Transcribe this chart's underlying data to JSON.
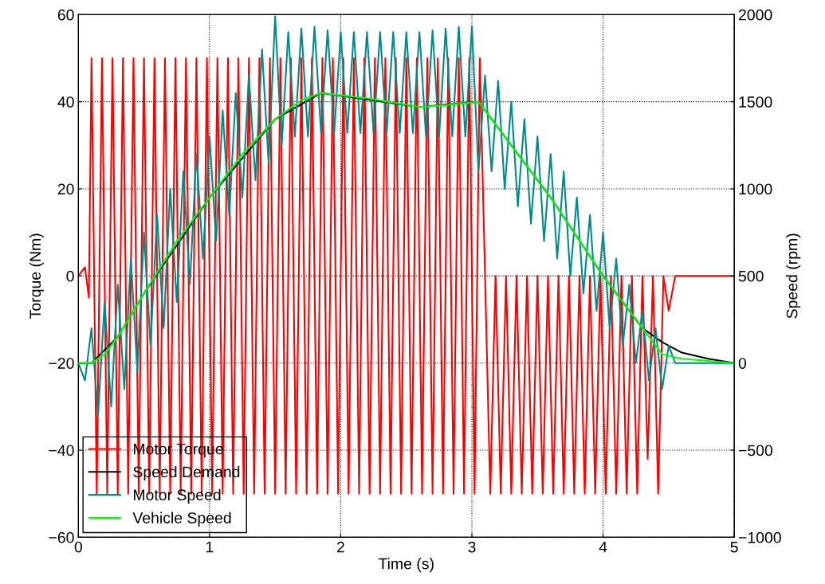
{
  "chart_data": {
    "type": "line",
    "xlabel": "Time (s)",
    "ylabel": "Torque (Nm)",
    "y2label": "Speed (rpm)",
    "xlim": [
      0,
      5
    ],
    "xticks": [
      0,
      1,
      2,
      3,
      4,
      5
    ],
    "ylim": [
      -60,
      60
    ],
    "yticks": [
      -60,
      -40,
      -20,
      0,
      20,
      40,
      60
    ],
    "y2lim": [
      -1000,
      2000
    ],
    "y2ticks": [
      -1000,
      -500,
      0,
      500,
      1000,
      1500,
      2000
    ],
    "grid": true,
    "legend": "bottom left",
    "line_style": "solid",
    "marker": "none",
    "series": [
      {
        "name": "Motor Torque",
        "color": "#ff0000",
        "x": [
          0,
          0.05,
          0.08,
          0.1,
          0.14,
          0.18,
          0.22,
          0.26,
          0.3,
          0.34,
          0.38,
          0.42,
          0.46,
          0.5,
          0.54,
          0.58,
          0.62,
          0.66,
          0.7,
          0.74,
          0.78,
          0.82,
          0.86,
          0.9,
          0.94,
          0.98,
          1.02,
          1.06,
          1.1,
          1.14,
          1.18,
          1.22,
          1.26,
          1.3,
          1.34,
          1.38,
          1.42,
          1.46,
          1.5,
          1.54,
          1.58,
          1.62,
          1.66,
          1.7,
          1.74,
          1.78,
          1.82,
          1.86,
          1.9,
          1.94,
          1.98,
          2.02,
          2.06,
          2.1,
          2.14,
          2.18,
          2.22,
          2.26,
          2.3,
          2.34,
          2.38,
          2.42,
          2.46,
          2.5,
          2.54,
          2.58,
          2.62,
          2.66,
          2.7,
          2.74,
          2.78,
          2.82,
          2.86,
          2.9,
          2.94,
          2.98,
          3.02,
          3.06,
          3.1,
          3.14,
          3.18,
          3.22,
          3.26,
          3.3,
          3.34,
          3.38,
          3.42,
          3.46,
          3.5,
          3.54,
          3.58,
          3.62,
          3.66,
          3.7,
          3.74,
          3.78,
          3.82,
          3.86,
          3.9,
          3.94,
          3.98,
          4.02,
          4.06,
          4.1,
          4.14,
          4.18,
          4.22,
          4.26,
          4.3,
          4.34,
          4.38,
          4.42,
          4.46,
          4.5,
          4.55,
          5.0
        ],
        "values": [
          0,
          2,
          -5,
          50,
          -50,
          50,
          -50,
          50,
          -50,
          50,
          -50,
          50,
          -50,
          50,
          -50,
          50,
          -50,
          50,
          -50,
          50,
          -50,
          50,
          -50,
          50,
          -50,
          50,
          -50,
          50,
          -50,
          50,
          -50,
          50,
          -50,
          50,
          -50,
          50,
          -50,
          50,
          -50,
          50,
          -50,
          50,
          -50,
          50,
          -50,
          50,
          -50,
          50,
          -50,
          50,
          -50,
          50,
          -50,
          50,
          -50,
          50,
          -50,
          50,
          -50,
          50,
          -50,
          50,
          -50,
          50,
          -50,
          50,
          -50,
          50,
          -50,
          50,
          -50,
          50,
          -50,
          50,
          -50,
          50,
          -50,
          50,
          0,
          -50,
          0,
          -50,
          0,
          -50,
          0,
          -50,
          0,
          -50,
          0,
          -50,
          0,
          -50,
          0,
          -50,
          0,
          -50,
          0,
          -50,
          0,
          -50,
          0,
          -50,
          0,
          -50,
          0,
          -50,
          0,
          -50,
          0,
          -42,
          0,
          -50,
          0,
          -8,
          0,
          0
        ]
      },
      {
        "name": "Speed Demand",
        "color": "#000000",
        "axis": "y2",
        "x": [
          0,
          0.1,
          0.3,
          0.5,
          1.0,
          1.5,
          1.85,
          2.6,
          3.05,
          3.3,
          3.6,
          4.0,
          4.3,
          4.45,
          4.6,
          4.8,
          5.0
        ],
        "values": [
          0,
          0,
          150,
          400,
          950,
          1400,
          1550,
          1470,
          1500,
          1250,
          950,
          500,
          200,
          120,
          60,
          25,
          0
        ]
      },
      {
        "name": "Motor Speed",
        "color": "#008b8b",
        "axis": "y2",
        "x": [
          0,
          0.05,
          0.1,
          0.15,
          0.2,
          0.25,
          0.3,
          0.35,
          0.4,
          0.45,
          0.5,
          0.55,
          0.6,
          0.65,
          0.7,
          0.75,
          0.8,
          0.85,
          0.9,
          0.95,
          1.0,
          1.05,
          1.1,
          1.15,
          1.2,
          1.25,
          1.3,
          1.35,
          1.4,
          1.45,
          1.5,
          1.55,
          1.6,
          1.65,
          1.7,
          1.75,
          1.8,
          1.85,
          1.9,
          1.95,
          2.0,
          2.05,
          2.1,
          2.15,
          2.2,
          2.25,
          2.3,
          2.35,
          2.4,
          2.45,
          2.5,
          2.55,
          2.6,
          2.65,
          2.7,
          2.75,
          2.8,
          2.85,
          2.9,
          2.95,
          3.0,
          3.05,
          3.1,
          3.15,
          3.2,
          3.25,
          3.3,
          3.35,
          3.4,
          3.45,
          3.5,
          3.55,
          3.6,
          3.65,
          3.7,
          3.75,
          3.8,
          3.85,
          3.9,
          3.95,
          4.0,
          4.05,
          4.1,
          4.15,
          4.2,
          4.25,
          4.3,
          4.35,
          4.4,
          4.45,
          4.5,
          4.55,
          4.6,
          5.0
        ],
        "values": [
          0,
          -100,
          200,
          -300,
          350,
          -250,
          450,
          -150,
          600,
          -50,
          750,
          100,
          850,
          200,
          1000,
          350,
          1100,
          450,
          1200,
          600,
          1300,
          700,
          1450,
          850,
          1550,
          950,
          1650,
          1050,
          1800,
          1150,
          1990,
          1250,
          1900,
          1300,
          1920,
          1300,
          1930,
          1320,
          1910,
          1320,
          1900,
          1320,
          1900,
          1320,
          1900,
          1320,
          1900,
          1320,
          1900,
          1320,
          1900,
          1320,
          1900,
          1300,
          1910,
          1300,
          1920,
          1300,
          1930,
          1300,
          1930,
          1100,
          1650,
          1100,
          1620,
          1000,
          1500,
          900,
          1400,
          800,
          1300,
          700,
          1200,
          600,
          1100,
          500,
          950,
          400,
          850,
          300,
          750,
          200,
          600,
          100,
          450,
          0,
          300,
          -100,
          200,
          -150,
          100,
          0,
          0,
          0
        ]
      },
      {
        "name": "Vehicle Speed",
        "color": "#00ff00",
        "axis": "y2",
        "x": [
          0,
          0.1,
          0.2,
          0.3,
          0.5,
          0.75,
          1.0,
          1.25,
          1.5,
          1.7,
          1.85,
          2.2,
          2.6,
          2.8,
          3.05,
          3.3,
          3.6,
          4.0,
          4.3,
          4.45,
          4.6,
          5.0
        ],
        "values": [
          0,
          0,
          50,
          150,
          400,
          700,
          950,
          1200,
          1400,
          1510,
          1550,
          1520,
          1470,
          1480,
          1500,
          1250,
          950,
          500,
          200,
          50,
          25,
          0
        ]
      }
    ]
  }
}
